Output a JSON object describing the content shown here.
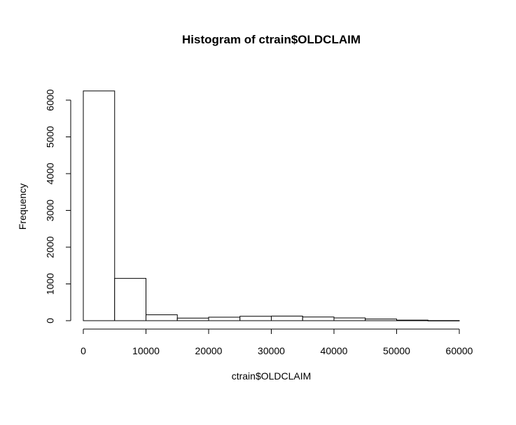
{
  "chart_data": {
    "type": "bar",
    "title": "Histogram of ctrain$OLDCLAIM",
    "xlabel": "ctrain$OLDCLAIM",
    "ylabel": "Frequency",
    "bins": [
      {
        "x0": 0,
        "x1": 5000,
        "count": 6250
      },
      {
        "x0": 5000,
        "x1": 10000,
        "count": 1150
      },
      {
        "x0": 10000,
        "x1": 15000,
        "count": 160
      },
      {
        "x0": 15000,
        "x1": 20000,
        "count": 70
      },
      {
        "x0": 20000,
        "x1": 25000,
        "count": 95
      },
      {
        "x0": 25000,
        "x1": 30000,
        "count": 120
      },
      {
        "x0": 30000,
        "x1": 35000,
        "count": 125
      },
      {
        "x0": 35000,
        "x1": 40000,
        "count": 100
      },
      {
        "x0": 40000,
        "x1": 45000,
        "count": 75
      },
      {
        "x0": 45000,
        "x1": 50000,
        "count": 45
      },
      {
        "x0": 50000,
        "x1": 55000,
        "count": 15
      },
      {
        "x0": 55000,
        "x1": 60000,
        "count": 3
      }
    ],
    "xlim": [
      0,
      60000
    ],
    "ylim": [
      0,
      6000
    ],
    "xticks": [
      0,
      10000,
      20000,
      30000,
      40000,
      50000,
      60000
    ],
    "yticks": [
      0,
      1000,
      2000,
      3000,
      4000,
      5000,
      6000
    ],
    "grid": false,
    "colors": {
      "bar_fill": "#ffffff",
      "bar_stroke": "#000000"
    }
  }
}
